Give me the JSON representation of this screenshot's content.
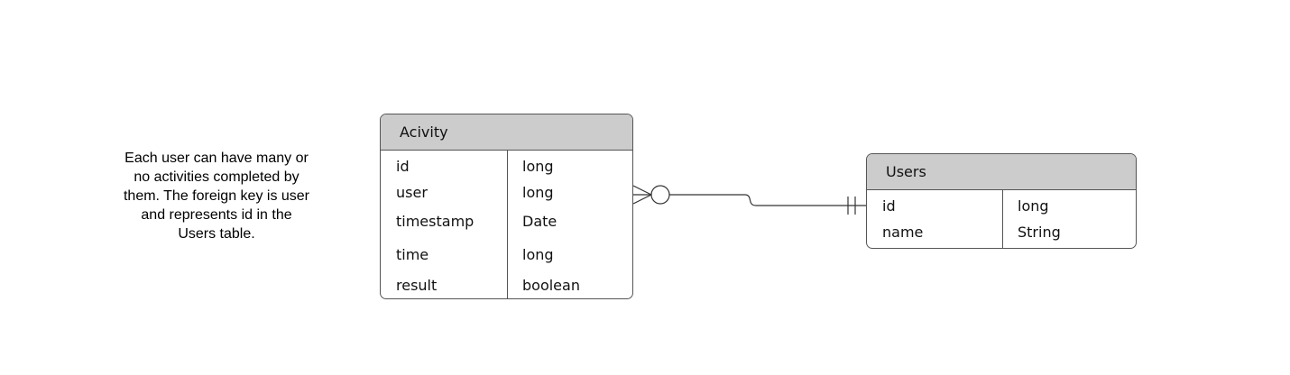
{
  "note": {
    "lines": [
      "Each user can have many or",
      "no activities completed by",
      "them. The foreign key is user",
      "and represents id in the",
      "Users table."
    ]
  },
  "activity": {
    "title": "Acivity",
    "rows": [
      {
        "name": "id",
        "type": "long"
      },
      {
        "name": "user",
        "type": "long"
      },
      {
        "name": "timestamp",
        "type": "Date"
      },
      {
        "name": "time",
        "type": "long"
      },
      {
        "name": "result",
        "type": "boolean"
      }
    ]
  },
  "users": {
    "title": "Users",
    "rows": [
      {
        "name": "id",
        "type": "long"
      },
      {
        "name": "name",
        "type": "String"
      }
    ]
  },
  "relationship": {
    "activity_end": "zero-or-many",
    "users_end": "exactly-one"
  }
}
